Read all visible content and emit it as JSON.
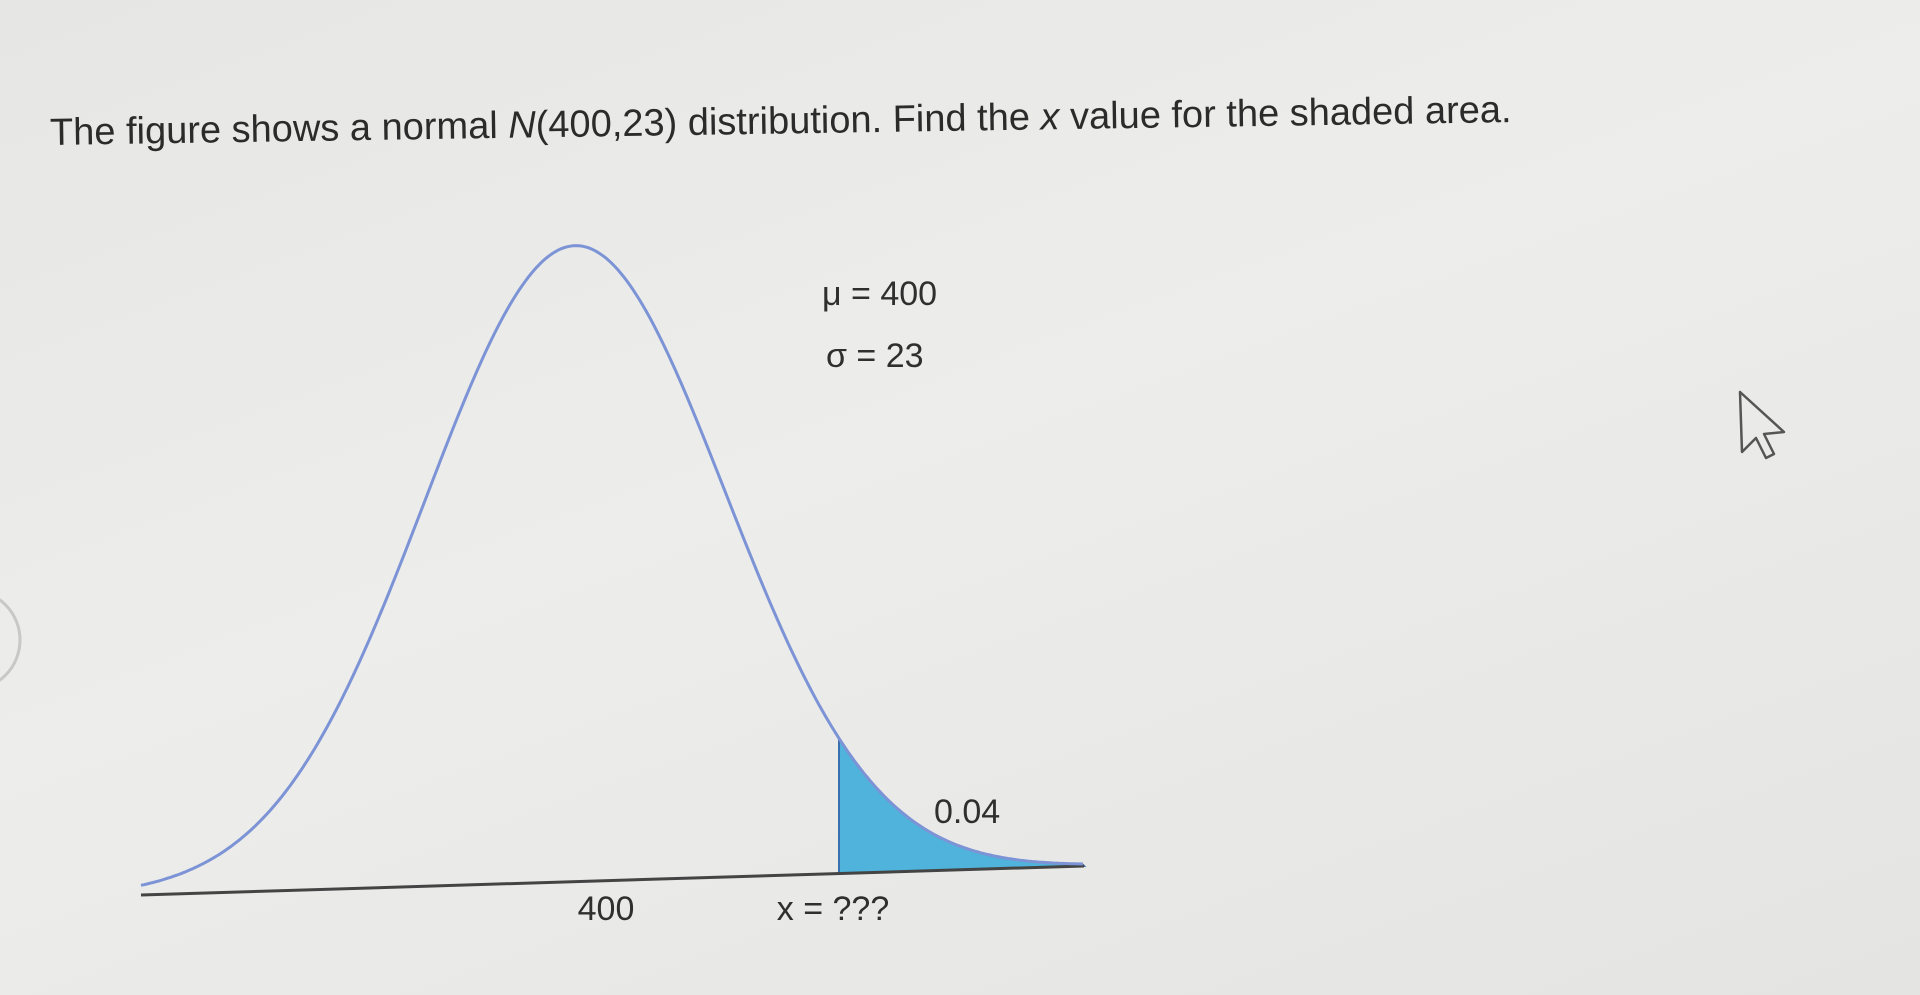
{
  "question": [
    "The figure shows a normal ",
    "N",
    "(400,23) distribution. Find the ",
    "x",
    " value for the shaded area."
  ],
  "figure": {
    "mu_label": "μ = 400",
    "sigma_label": "σ = 23",
    "area_label": "0.04",
    "mean_tick": "400",
    "x_label": "x = ???"
  }
}
